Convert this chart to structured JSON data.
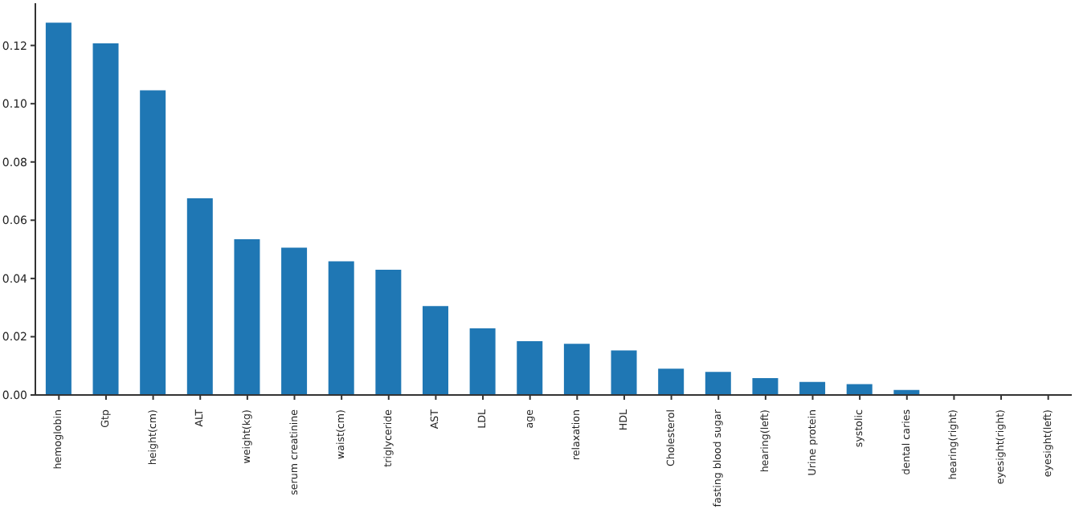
{
  "chart_data": {
    "type": "bar",
    "categories": [
      "hemoglobin",
      "Gtp",
      "height(cm)",
      "ALT",
      "weight(kg)",
      "serum creatinine",
      "waist(cm)",
      "triglyceride",
      "AST",
      "LDL",
      "age",
      "relaxation",
      "HDL",
      "Cholesterol",
      "fasting blood sugar",
      "hearing(left)",
      "Urine protein",
      "systolic",
      "dental caries",
      "hearing(right)",
      "eyesight(right)",
      "eyesight(left)"
    ],
    "values": [
      0.1278,
      0.1207,
      0.1046,
      0.0675,
      0.0535,
      0.0506,
      0.0459,
      0.043,
      0.0305,
      0.0229,
      0.0185,
      0.0176,
      0.0153,
      0.009,
      0.0079,
      0.0058,
      0.0045,
      0.0037,
      0.0017,
      0.0,
      0.0,
      0.0
    ],
    "color": "#1f77b4",
    "ylim": [
      0,
      0.1345
    ],
    "yticks": [
      {
        "value": 0,
        "label": "0.00"
      },
      {
        "value": 0.02,
        "label": "0.02"
      },
      {
        "value": 0.04,
        "label": "0.04"
      },
      {
        "value": 0.06,
        "label": "0.06"
      },
      {
        "value": 0.08,
        "label": "0.08"
      },
      {
        "value": 0.1,
        "label": "0.10"
      },
      {
        "value": 0.12,
        "label": "0.12"
      }
    ],
    "grid": false,
    "legend": false
  }
}
